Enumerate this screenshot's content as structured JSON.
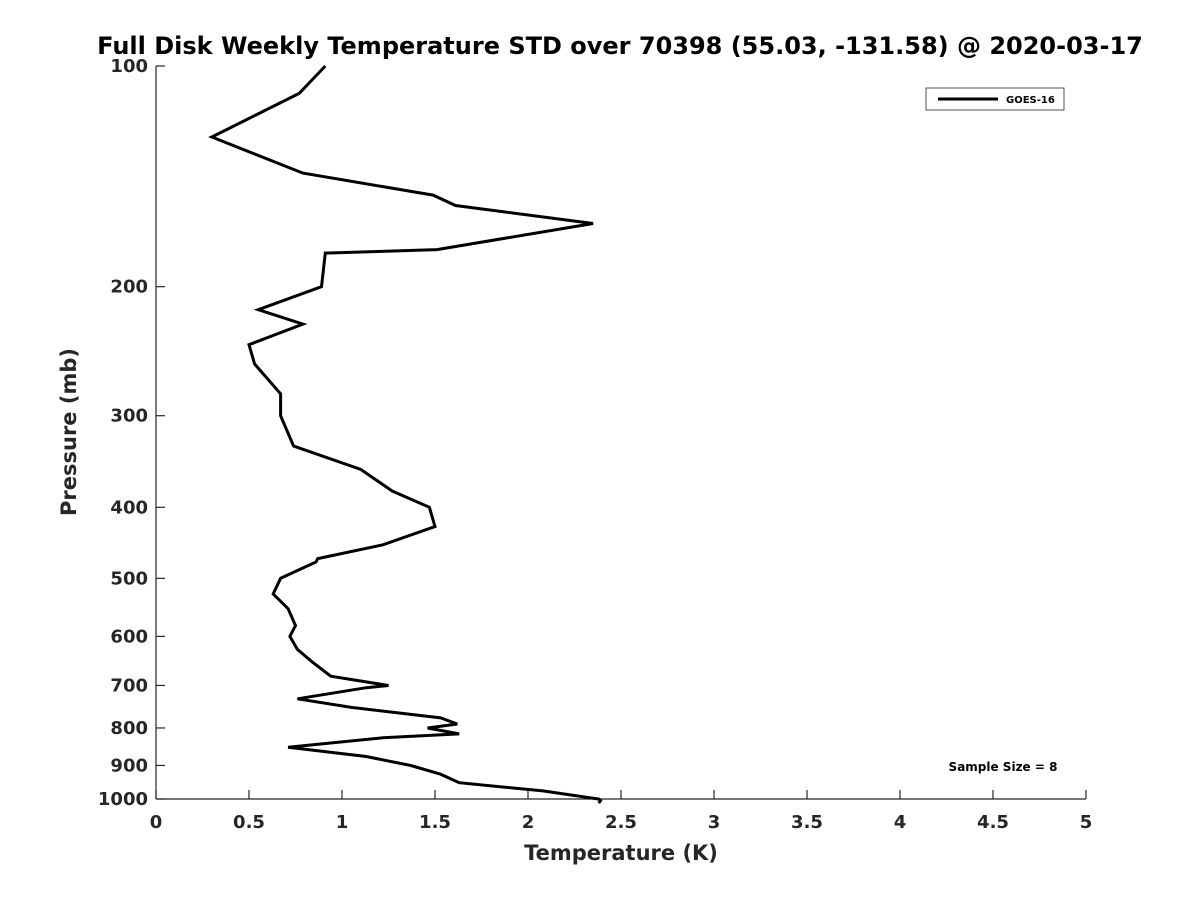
{
  "chart_data": {
    "type": "line",
    "title": "Full Disk Weekly Temperature STD over 70398 (55.03, -131.58) @ 2020-03-17",
    "xlabel": "Temperature (K)",
    "ylabel": "Pressure (mb)",
    "xlim": [
      0,
      5
    ],
    "ylim": [
      100,
      1000
    ],
    "y_scale": "log",
    "y_reversed": true,
    "x_ticks": [
      "0",
      "0.5",
      "1",
      "1.5",
      "2",
      "2.5",
      "3",
      "3.5",
      "4",
      "4.5",
      "5"
    ],
    "y_ticks": [
      "100",
      "200",
      "300",
      "400",
      "500",
      "600",
      "700",
      "800",
      "900",
      "1000"
    ],
    "grid": false,
    "legend_position": "top-right",
    "annotation": "Sample Size = 8",
    "color": "#000000",
    "series": [
      {
        "name": "GOES-16",
        "x": [
          0.91,
          0.77,
          0.3,
          0.79,
          1.49,
          1.61,
          2.35,
          1.51,
          0.91,
          0.89,
          0.55,
          0.79,
          0.5,
          0.53,
          0.67,
          0.67,
          0.74,
          1.1,
          1.27,
          1.47,
          1.5,
          1.22,
          0.87,
          0.86,
          0.67,
          0.63,
          0.71,
          0.75,
          0.72,
          0.76,
          0.84,
          0.94,
          1.25,
          1.13,
          0.76,
          1.05,
          1.53,
          1.62,
          1.46,
          1.63,
          1.22,
          0.71,
          1.13,
          1.37,
          1.53,
          1.63,
          2.08,
          2.38,
          2.39,
          2.38
        ],
        "y": [
          100,
          109,
          125,
          140,
          150,
          155,
          164,
          178,
          180,
          200,
          215,
          225,
          240,
          255,
          280,
          300,
          330,
          355,
          380,
          400,
          425,
          450,
          470,
          475,
          500,
          525,
          550,
          580,
          600,
          625,
          650,
          680,
          700,
          705,
          730,
          750,
          775,
          790,
          800,
          815,
          825,
          850,
          875,
          900,
          925,
          950,
          975,
          1000,
          1005,
          1013
        ]
      }
    ]
  }
}
